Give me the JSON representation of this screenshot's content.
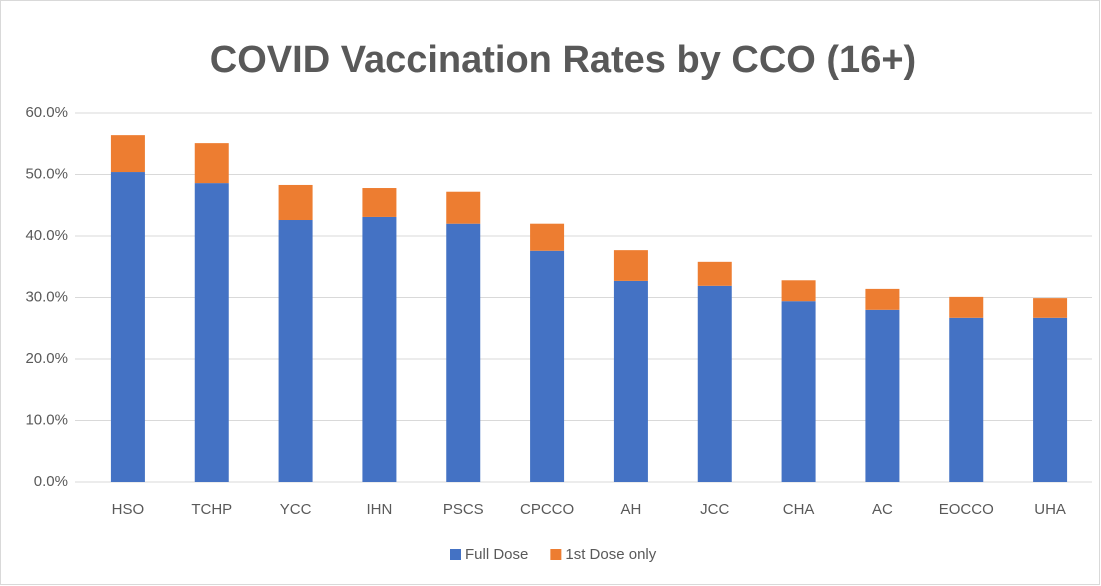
{
  "chart_data": {
    "type": "stacked_bar",
    "title": "COVID Vaccination Rates by CCO  (16+)",
    "categories": [
      "HSO",
      "TCHP",
      "YCC",
      "IHN",
      "PSCS",
      "CPCCO",
      "AH",
      "JCC",
      "CHA",
      "AC",
      "EOCCO",
      "UHA"
    ],
    "series": [
      {
        "name": "Full Dose",
        "color": "#4472c4",
        "values": [
          50.4,
          48.6,
          42.6,
          43.1,
          42.0,
          37.6,
          32.7,
          31.9,
          29.4,
          28.0,
          26.7,
          26.7
        ]
      },
      {
        "name": "1st Dose only",
        "color": "#ed7d31",
        "values": [
          6.0,
          6.5,
          5.7,
          4.7,
          5.2,
          4.4,
          5.0,
          3.9,
          3.4,
          3.4,
          3.4,
          3.2
        ]
      }
    ],
    "ylim": [
      0,
      60
    ],
    "yticks": [
      {
        "value": 0,
        "label": "0.0%"
      },
      {
        "value": 10,
        "label": "10.0%"
      },
      {
        "value": 20,
        "label": "20.0%"
      },
      {
        "value": 30,
        "label": "30.0%"
      },
      {
        "value": 40,
        "label": "40.0%"
      },
      {
        "value": 50,
        "label": "50.0%"
      },
      {
        "value": 60,
        "label": "60.0%"
      }
    ],
    "grid": true,
    "legend": "bottom"
  }
}
